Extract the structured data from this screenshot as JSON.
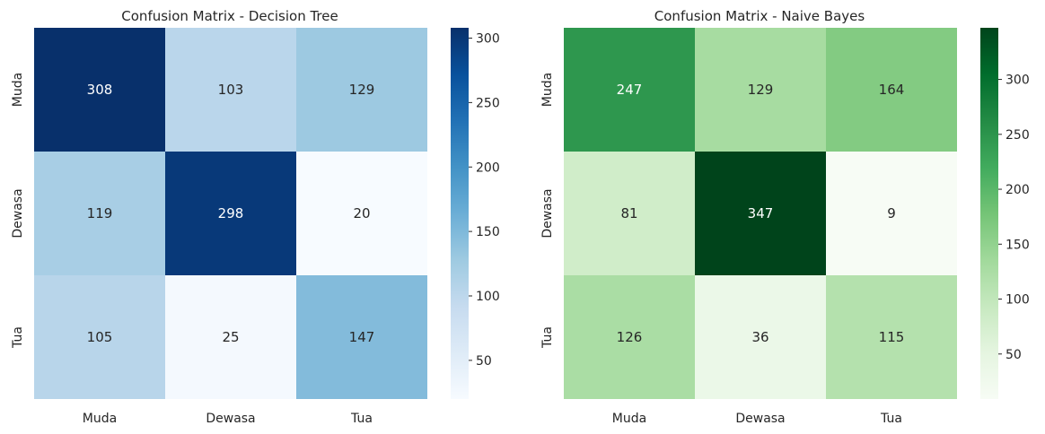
{
  "chart_data": [
    {
      "type": "heatmap",
      "title": "Confusion Matrix - Decision Tree",
      "x_categories": [
        "Muda",
        "Dewasa",
        "Tua"
      ],
      "y_categories": [
        "Muda",
        "Dewasa",
        "Tua"
      ],
      "values": [
        [
          308,
          103,
          129
        ],
        [
          119,
          298,
          20
        ],
        [
          105,
          25,
          147
        ]
      ],
      "colormap": "Blues",
      "colorbar": {
        "range": [
          20,
          308
        ],
        "ticks": [
          50,
          100,
          150,
          200,
          250,
          300
        ]
      }
    },
    {
      "type": "heatmap",
      "title": "Confusion Matrix - Naive Bayes",
      "x_categories": [
        "Muda",
        "Dewasa",
        "Tua"
      ],
      "y_categories": [
        "Muda",
        "Dewasa",
        "Tua"
      ],
      "values": [
        [
          247,
          129,
          164
        ],
        [
          81,
          347,
          9
        ],
        [
          126,
          36,
          115
        ]
      ],
      "colormap": "Greens",
      "colorbar": {
        "range": [
          9,
          347
        ],
        "ticks": [
          50,
          100,
          150,
          200,
          250,
          300
        ]
      }
    }
  ],
  "colors": {
    "Blues": [
      "#f7fbff",
      "#deebf7",
      "#c6dbef",
      "#9ecae1",
      "#6baed6",
      "#4292c6",
      "#2171b5",
      "#08519c",
      "#08306b"
    ],
    "Greens": [
      "#f7fcf5",
      "#e5f5e0",
      "#c7e9c0",
      "#a1d99b",
      "#74c476",
      "#41ab5d",
      "#238b45",
      "#006d2c",
      "#00441b"
    ]
  }
}
